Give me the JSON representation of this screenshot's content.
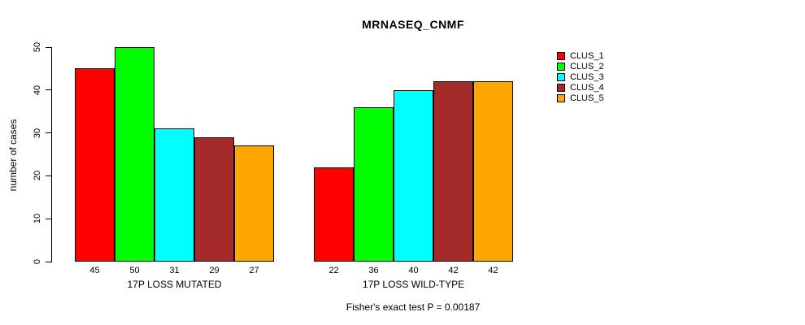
{
  "chart_data": {
    "type": "bar",
    "title": "MRNASEQ_CNMF",
    "ylabel": "number of cases",
    "xlabel": "",
    "ylim": [
      0,
      50
    ],
    "yticks": [
      0,
      10,
      20,
      30,
      40,
      50
    ],
    "grid": false,
    "legend_position": "top-right",
    "caption": "Fisher's exact test P = 0.00187",
    "series": [
      {
        "name": "CLUS_1",
        "color": "#FF0000",
        "values": [
          45,
          22
        ]
      },
      {
        "name": "CLUS_2",
        "color": "#00FF00",
        "values": [
          50,
          36
        ]
      },
      {
        "name": "CLUS_3",
        "color": "#00FFFF",
        "values": [
          31,
          40
        ]
      },
      {
        "name": "CLUS_4",
        "color": "#A52A2A",
        "values": [
          29,
          42
        ]
      },
      {
        "name": "CLUS_5",
        "color": "#FFA500",
        "values": [
          27,
          42
        ]
      }
    ],
    "groups": [
      {
        "label": "17P LOSS MUTATED",
        "values": [
          45,
          50,
          31,
          29,
          27
        ]
      },
      {
        "label": "17P LOSS WILD-TYPE",
        "values": [
          22,
          36,
          40,
          42,
          42
        ]
      }
    ]
  }
}
